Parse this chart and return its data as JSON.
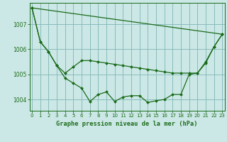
{
  "title": "Graphe pression niveau de la mer (hPa)",
  "background_color": "#cce8e6",
  "grid_color": "#88bbbb",
  "line_color": "#1a6b1a",
  "marker_color": "#1a6b1a",
  "xlim": [
    -0.3,
    23.3
  ],
  "ylim": [
    1003.55,
    1007.85
  ],
  "yticks": [
    1004,
    1005,
    1006,
    1007
  ],
  "xticks": [
    0,
    1,
    2,
    3,
    4,
    5,
    6,
    7,
    8,
    9,
    10,
    11,
    12,
    13,
    14,
    15,
    16,
    17,
    18,
    19,
    20,
    21,
    22,
    23
  ],
  "series1_x": [
    0,
    1,
    2,
    3,
    4,
    5,
    6,
    7,
    8,
    9,
    10,
    11,
    12,
    13,
    14,
    15,
    16,
    17,
    18,
    19,
    20,
    21,
    22,
    23
  ],
  "series1_y": [
    1007.65,
    1006.3,
    1005.9,
    1005.35,
    1005.05,
    1005.3,
    1005.55,
    1005.55,
    1005.5,
    1005.45,
    1005.4,
    1005.35,
    1005.3,
    1005.25,
    1005.2,
    1005.15,
    1005.1,
    1005.05,
    1005.05,
    1005.05,
    1005.05,
    1005.5,
    1006.1,
    1006.6
  ],
  "series2_x": [
    0,
    1,
    2,
    3,
    4,
    5,
    6,
    7,
    8,
    9,
    10,
    11,
    12,
    13,
    14,
    15,
    16,
    17,
    18,
    19,
    20,
    21,
    22,
    23
  ],
  "series2_y": [
    1007.65,
    1006.3,
    1005.9,
    1005.35,
    1004.85,
    1004.65,
    1004.45,
    1003.92,
    1004.2,
    1004.3,
    1003.92,
    1004.1,
    1004.15,
    1004.15,
    1003.88,
    1003.95,
    1004.0,
    1004.2,
    1004.2,
    1005.0,
    1005.05,
    1005.45,
    1006.1,
    1006.6
  ],
  "series3_x": [
    0,
    23
  ],
  "series3_y": [
    1007.65,
    1006.6
  ]
}
